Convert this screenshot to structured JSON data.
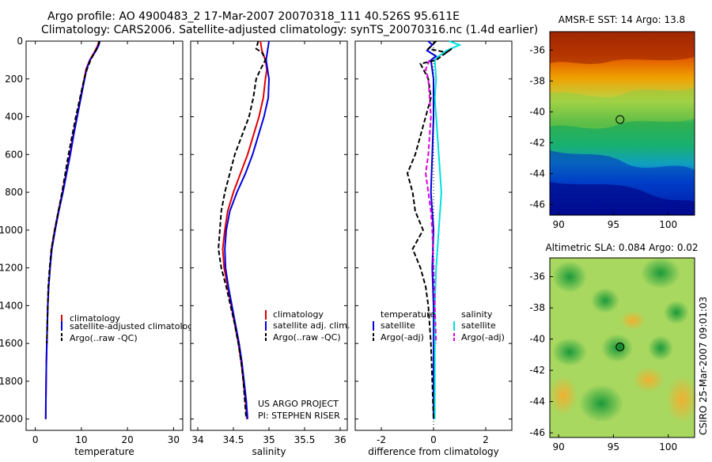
{
  "title_line1": "Argo profile: AO 4900483_2 17-Mar-2007 20070318_111 40.526S 95.611E",
  "title_line2": "Climatology: CARS2006. Satellite-adjusted climatology: synTS_20070316.nc (1.4d earlier)",
  "side_text": "CSIRO 25-Mar-2007 09:01:03",
  "colors": {
    "climatology": "#e00000",
    "satellite": "#0000e0",
    "argo": "#000000",
    "sat_salinity": "#00e0e0",
    "argo_adj_salinity": "#e000e0"
  },
  "chart_data": [
    {
      "id": "temperature",
      "type": "line",
      "xlabel": "temperature",
      "xlim": [
        -2,
        32
      ],
      "xticks": [
        0,
        10,
        20,
        30
      ],
      "ylim": [
        2060,
        0
      ],
      "yticks": [
        0,
        200,
        400,
        600,
        800,
        1000,
        1200,
        1400,
        1600,
        1800,
        2000
      ],
      "legend": [
        "climatology",
        "satellite-adjusted climatology",
        "Argo(..raw -QC)"
      ],
      "series": [
        {
          "name": "climatology",
          "color": "#e00000",
          "dash": "",
          "points": [
            [
              13.8,
              0
            ],
            [
              13.6,
              20
            ],
            [
              13.0,
              50
            ],
            [
              11.8,
              100
            ],
            [
              11.0,
              150
            ],
            [
              10.6,
              200
            ],
            [
              9.8,
              300
            ],
            [
              9.0,
              400
            ],
            [
              8.2,
              500
            ],
            [
              7.5,
              600
            ],
            [
              6.7,
              700
            ],
            [
              5.9,
              800
            ],
            [
              5.0,
              900
            ],
            [
              4.2,
              1000
            ],
            [
              3.5,
              1100
            ],
            [
              3.2,
              1200
            ],
            [
              2.9,
              1300
            ],
            [
              2.7,
              1400
            ],
            [
              2.6,
              1500
            ],
            [
              2.5,
              1600
            ],
            [
              2.4,
              1700
            ],
            [
              2.35,
              1800
            ],
            [
              2.3,
              1900
            ],
            [
              2.25,
              2000
            ]
          ]
        },
        {
          "name": "satellite-adjusted climatology",
          "color": "#0000e0",
          "dash": "",
          "points": [
            [
              14.0,
              0
            ],
            [
              13.8,
              20
            ],
            [
              13.2,
              50
            ],
            [
              11.9,
              100
            ],
            [
              11.1,
              150
            ],
            [
              10.7,
              200
            ],
            [
              9.9,
              300
            ],
            [
              9.1,
              400
            ],
            [
              8.3,
              500
            ],
            [
              7.6,
              600
            ],
            [
              6.8,
              700
            ],
            [
              6.0,
              800
            ],
            [
              5.1,
              900
            ],
            [
              4.3,
              1000
            ],
            [
              3.6,
              1100
            ],
            [
              3.2,
              1200
            ],
            [
              2.9,
              1300
            ],
            [
              2.7,
              1400
            ],
            [
              2.6,
              1500
            ],
            [
              2.5,
              1600
            ],
            [
              2.4,
              1700
            ],
            [
              2.35,
              1800
            ],
            [
              2.3,
              1900
            ],
            [
              2.25,
              2000
            ]
          ]
        },
        {
          "name": "Argo(..raw -QC)",
          "color": "#000000",
          "dash": "6,3",
          "points": [
            [
              13.9,
              0
            ],
            [
              13.7,
              20
            ],
            [
              13.1,
              50
            ],
            [
              12.0,
              100
            ],
            [
              11.2,
              150
            ],
            [
              10.6,
              200
            ],
            [
              9.7,
              300
            ],
            [
              8.8,
              400
            ],
            [
              8.0,
              500
            ],
            [
              7.2,
              600
            ],
            [
              6.5,
              700
            ],
            [
              5.8,
              800
            ],
            [
              5.0,
              900
            ],
            [
              4.2,
              1000
            ],
            [
              3.5,
              1100
            ],
            [
              3.1,
              1200
            ],
            [
              2.8,
              1300
            ],
            [
              2.7,
              1400
            ],
            [
              2.6,
              1500
            ],
            [
              2.5,
              1600
            ]
          ]
        }
      ]
    },
    {
      "id": "salinity",
      "type": "line",
      "xlabel": "salinity",
      "xlim": [
        33.9,
        36.1
      ],
      "xticks": [
        34,
        34.5,
        35,
        35.5,
        36
      ],
      "ylim": [
        2060,
        0
      ],
      "legend": [
        "climatology",
        "satellite adj. clim.",
        "Argo(..raw -QC)"
      ],
      "annotation": [
        "US ARGO PROJECT",
        "PI: STEPHEN RISER"
      ],
      "series": [
        {
          "name": "climatology",
          "color": "#e00000",
          "dash": "",
          "points": [
            [
              34.88,
              0
            ],
            [
              34.9,
              50
            ],
            [
              34.95,
              100
            ],
            [
              34.97,
              150
            ],
            [
              34.95,
              200
            ],
            [
              34.92,
              300
            ],
            [
              34.86,
              400
            ],
            [
              34.78,
              500
            ],
            [
              34.7,
              600
            ],
            [
              34.6,
              700
            ],
            [
              34.5,
              800
            ],
            [
              34.42,
              900
            ],
            [
              34.38,
              1000
            ],
            [
              34.35,
              1100
            ],
            [
              34.37,
              1200
            ],
            [
              34.42,
              1300
            ],
            [
              34.47,
              1400
            ],
            [
              34.52,
              1500
            ],
            [
              34.57,
              1600
            ],
            [
              34.61,
              1700
            ],
            [
              34.64,
              1800
            ],
            [
              34.67,
              1900
            ],
            [
              34.69,
              2000
            ]
          ]
        },
        {
          "name": "satellite adj. clim.",
          "color": "#0000e0",
          "dash": "",
          "points": [
            [
              35.0,
              0
            ],
            [
              34.98,
              50
            ],
            [
              34.96,
              100
            ],
            [
              34.98,
              150
            ],
            [
              35.0,
              200
            ],
            [
              34.99,
              300
            ],
            [
              34.93,
              400
            ],
            [
              34.85,
              500
            ],
            [
              34.77,
              600
            ],
            [
              34.67,
              700
            ],
            [
              34.55,
              800
            ],
            [
              34.45,
              900
            ],
            [
              34.4,
              1000
            ],
            [
              34.38,
              1100
            ],
            [
              34.39,
              1200
            ],
            [
              34.43,
              1300
            ],
            [
              34.48,
              1400
            ],
            [
              34.53,
              1500
            ],
            [
              34.58,
              1600
            ],
            [
              34.62,
              1700
            ],
            [
              34.65,
              1800
            ],
            [
              34.68,
              1900
            ],
            [
              34.7,
              2000
            ]
          ]
        },
        {
          "name": "Argo(..raw -QC)",
          "color": "#000000",
          "dash": "6,3",
          "points": [
            [
              34.85,
              0
            ],
            [
              34.82,
              40
            ],
            [
              34.9,
              60
            ],
            [
              34.93,
              80
            ],
            [
              34.95,
              100
            ],
            [
              34.88,
              150
            ],
            [
              34.82,
              200
            ],
            [
              34.78,
              300
            ],
            [
              34.72,
              400
            ],
            [
              34.62,
              500
            ],
            [
              34.52,
              600
            ],
            [
              34.45,
              700
            ],
            [
              34.38,
              800
            ],
            [
              34.33,
              900
            ],
            [
              34.31,
              1000
            ],
            [
              34.29,
              1100
            ],
            [
              34.33,
              1200
            ],
            [
              34.4,
              1300
            ],
            [
              34.46,
              1400
            ],
            [
              34.52,
              1500
            ],
            [
              34.57,
              1600
            ],
            [
              34.61,
              1700
            ],
            [
              34.64,
              1800
            ],
            [
              34.66,
              1900
            ],
            [
              34.68,
              2000
            ]
          ]
        }
      ]
    },
    {
      "id": "difference",
      "type": "line",
      "xlabel": "difference from climatology",
      "xlim": [
        -3,
        3
      ],
      "xticks": [
        -2,
        0,
        2
      ],
      "ylim": [
        2060,
        0
      ],
      "legend_headers": [
        "temperature",
        "salinity"
      ],
      "legend": [
        "satellite",
        "Argo(-adj)",
        "satellite",
        "Argo(-adj)"
      ],
      "series": [
        {
          "name": "satellite",
          "group": "temperature",
          "color": "#0000e0",
          "dash": "",
          "points": [
            [
              -0.2,
              0
            ],
            [
              -0.05,
              20
            ],
            [
              -0.25,
              50
            ],
            [
              0.1,
              80
            ],
            [
              -0.1,
              100
            ],
            [
              0,
              200
            ],
            [
              0,
              400
            ],
            [
              -0.05,
              600
            ],
            [
              -0.1,
              800
            ],
            [
              0,
              1000
            ],
            [
              -0.05,
              1200
            ],
            [
              0,
              1400
            ],
            [
              0,
              1600
            ],
            [
              0,
              1800
            ],
            [
              0,
              2000
            ]
          ]
        },
        {
          "name": "satellite",
          "group": "salinity",
          "color": "#00e0e0",
          "dash": "",
          "points": [
            [
              0.6,
              0
            ],
            [
              1.0,
              20
            ],
            [
              0.5,
              50
            ],
            [
              0.2,
              80
            ],
            [
              0.05,
              100
            ],
            [
              0.1,
              200
            ],
            [
              0.05,
              300
            ],
            [
              0.1,
              400
            ],
            [
              0.15,
              500
            ],
            [
              0.2,
              600
            ],
            [
              0.25,
              700
            ],
            [
              0.3,
              800
            ],
            [
              0.25,
              900
            ],
            [
              0.2,
              1000
            ],
            [
              0.15,
              1100
            ],
            [
              0.1,
              1200
            ],
            [
              0.05,
              1400
            ],
            [
              0.05,
              1600
            ],
            [
              0.05,
              1800
            ],
            [
              0.05,
              2000
            ]
          ]
        },
        {
          "name": "Argo(-adj)",
          "group": "temperature",
          "color": "#000000",
          "dash": "6,3",
          "points": [
            [
              0.1,
              0
            ],
            [
              -0.2,
              40
            ],
            [
              0.5,
              60
            ],
            [
              0.7,
              40
            ],
            [
              0.1,
              100
            ],
            [
              -0.5,
              120
            ],
            [
              -0.2,
              200
            ],
            [
              -0.1,
              300
            ],
            [
              -0.3,
              400
            ],
            [
              -0.5,
              500
            ],
            [
              -0.7,
              600
            ],
            [
              -1.0,
              700
            ],
            [
              -0.8,
              800
            ],
            [
              -0.7,
              900
            ],
            [
              -0.4,
              1000
            ],
            [
              -0.8,
              1100
            ],
            [
              -0.5,
              1200
            ],
            [
              -0.3,
              1300
            ],
            [
              -0.2,
              1400
            ],
            [
              -0.1,
              1600
            ],
            [
              -0.05,
              1800
            ],
            [
              0,
              2000
            ]
          ]
        },
        {
          "name": "Argo(-adj)",
          "group": "salinity",
          "color": "#e000e0",
          "dash": "6,3",
          "points": [
            [
              -0.15,
              100
            ],
            [
              -0.3,
              150
            ],
            [
              -0.2,
              200
            ],
            [
              -0.1,
              400
            ],
            [
              -0.2,
              600
            ],
            [
              -0.3,
              700
            ],
            [
              -0.2,
              800
            ],
            [
              -0.1,
              900
            ],
            [
              -0.05,
              1000
            ],
            [
              0,
              1200
            ],
            [
              0.05,
              1400
            ],
            [
              0.1,
              1600
            ]
          ]
        }
      ]
    },
    {
      "id": "sst_map",
      "type": "heatmap",
      "title": "AMSR-E SST: 14  Argo: 13.8",
      "xlim": [
        89.2,
        102.4
      ],
      "xticks": [
        90,
        95,
        100
      ],
      "ylim": [
        -46.7,
        -34.8
      ],
      "yticks": [
        -36,
        -38,
        -40,
        -42,
        -44,
        -46
      ],
      "marker": [
        95.6,
        -40.5
      ]
    },
    {
      "id": "sla_map",
      "type": "heatmap",
      "title": "Altimetric SLA: 0.084  Argo: 0.02",
      "xlim": [
        89.2,
        102.4
      ],
      "xticks": [
        90,
        95,
        100
      ],
      "ylim": [
        -46.3,
        -34.8
      ],
      "yticks": [
        -36,
        -38,
        -40,
        -42,
        -44,
        -46
      ],
      "marker": [
        95.6,
        -40.5
      ]
    }
  ]
}
